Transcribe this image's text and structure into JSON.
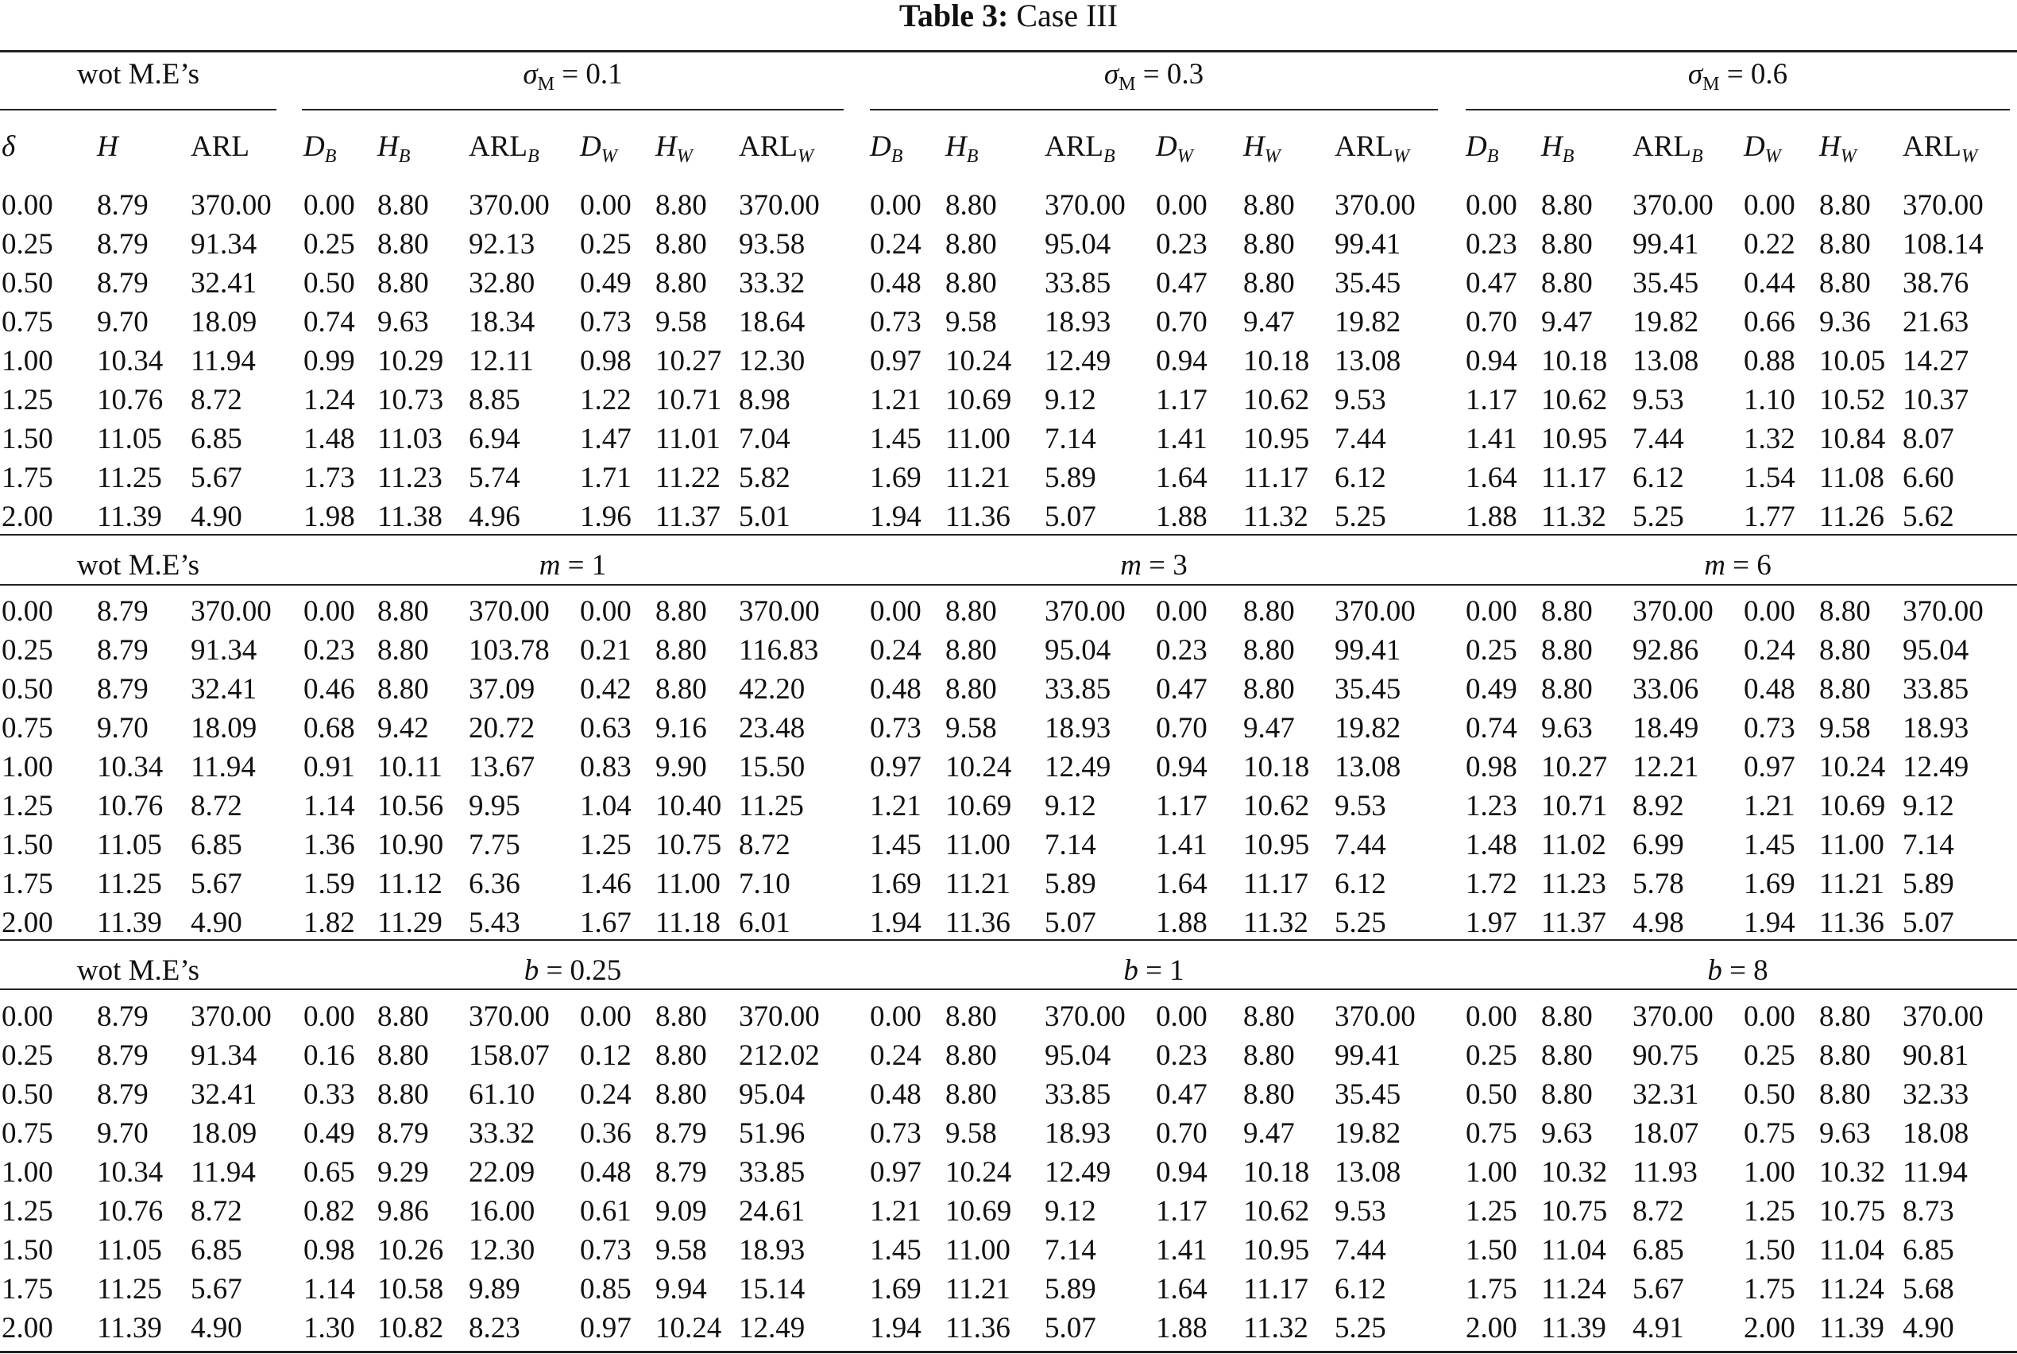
{
  "table": {
    "label": "Table 3:",
    "caption": "Case III",
    "baseline_label": "wot M.E’s",
    "header_row": [
      {
        "text": "δ",
        "style": "it"
      },
      {
        "text": "H",
        "style": "it"
      },
      {
        "text": "ARL",
        "style": "rm"
      },
      {
        "text": "D",
        "sub": "B",
        "style": "it"
      },
      {
        "text": "H",
        "sub": "B",
        "style": "it"
      },
      {
        "text": "ARL",
        "sub": "B",
        "style": "rm"
      },
      {
        "text": "D",
        "sub": "W",
        "style": "it"
      },
      {
        "text": "H",
        "sub": "W",
        "style": "it"
      },
      {
        "text": "ARL",
        "sub": "W",
        "style": "rm"
      },
      {
        "text": "D",
        "sub": "B",
        "style": "it"
      },
      {
        "text": "H",
        "sub": "B",
        "style": "it"
      },
      {
        "text": "ARL",
        "sub": "B",
        "style": "rm"
      },
      {
        "text": "D",
        "sub": "W",
        "style": "it"
      },
      {
        "text": "H",
        "sub": "W",
        "style": "it"
      },
      {
        "text": "ARL",
        "sub": "W",
        "style": "rm"
      },
      {
        "text": "D",
        "sub": "B",
        "style": "it"
      },
      {
        "text": "H",
        "sub": "B",
        "style": "it"
      },
      {
        "text": "ARL",
        "sub": "B",
        "style": "rm"
      },
      {
        "text": "D",
        "sub": "W",
        "style": "it"
      },
      {
        "text": "H",
        "sub": "W",
        "style": "it"
      },
      {
        "text": "ARL",
        "sub": "W",
        "style": "rm"
      }
    ],
    "panels": [
      {
        "groups": [
          {
            "sym": "σ",
            "sub": "M",
            "eq": " = 0.1"
          },
          {
            "sym": "σ",
            "sub": "M",
            "eq": " = 0.3"
          },
          {
            "sym": "σ",
            "sub": "M",
            "eq": " = 0.6"
          }
        ],
        "rows": [
          [
            "0.00",
            "8.79",
            "370.00",
            "0.00",
            "8.80",
            "370.00",
            "0.00",
            "8.80",
            "370.00",
            "0.00",
            "8.80",
            "370.00",
            "0.00",
            "8.80",
            "370.00",
            "0.00",
            "8.80",
            "370.00",
            "0.00",
            "8.80",
            "370.00"
          ],
          [
            "0.25",
            "8.79",
            "91.34",
            "0.25",
            "8.80",
            "92.13",
            "0.25",
            "8.80",
            "93.58",
            "0.24",
            "8.80",
            "95.04",
            "0.23",
            "8.80",
            "99.41",
            "0.23",
            "8.80",
            "99.41",
            "0.22",
            "8.80",
            "108.14"
          ],
          [
            "0.50",
            "8.79",
            "32.41",
            "0.50",
            "8.80",
            "32.80",
            "0.49",
            "8.80",
            "33.32",
            "0.48",
            "8.80",
            "33.85",
            "0.47",
            "8.80",
            "35.45",
            "0.47",
            "8.80",
            "35.45",
            "0.44",
            "8.80",
            "38.76"
          ],
          [
            "0.75",
            "9.70",
            "18.09",
            "0.74",
            "9.63",
            "18.34",
            "0.73",
            "9.58",
            "18.64",
            "0.73",
            "9.58",
            "18.93",
            "0.70",
            "9.47",
            "19.82",
            "0.70",
            "9.47",
            "19.82",
            "0.66",
            "9.36",
            "21.63"
          ],
          [
            "1.00",
            "10.34",
            "11.94",
            "0.99",
            "10.29",
            "12.11",
            "0.98",
            "10.27",
            "12.30",
            "0.97",
            "10.24",
            "12.49",
            "0.94",
            "10.18",
            "13.08",
            "0.94",
            "10.18",
            "13.08",
            "0.88",
            "10.05",
            "14.27"
          ],
          [
            "1.25",
            "10.76",
            "8.72",
            "1.24",
            "10.73",
            "8.85",
            "1.22",
            "10.71",
            "8.98",
            "1.21",
            "10.69",
            "9.12",
            "1.17",
            "10.62",
            "9.53",
            "1.17",
            "10.62",
            "9.53",
            "1.10",
            "10.52",
            "10.37"
          ],
          [
            "1.50",
            "11.05",
            "6.85",
            "1.48",
            "11.03",
            "6.94",
            "1.47",
            "11.01",
            "7.04",
            "1.45",
            "11.00",
            "7.14",
            "1.41",
            "10.95",
            "7.44",
            "1.41",
            "10.95",
            "7.44",
            "1.32",
            "10.84",
            "8.07"
          ],
          [
            "1.75",
            "11.25",
            "5.67",
            "1.73",
            "11.23",
            "5.74",
            "1.71",
            "11.22",
            "5.82",
            "1.69",
            "11.21",
            "5.89",
            "1.64",
            "11.17",
            "6.12",
            "1.64",
            "11.17",
            "6.12",
            "1.54",
            "11.08",
            "6.60"
          ],
          [
            "2.00",
            "11.39",
            "4.90",
            "1.98",
            "11.38",
            "4.96",
            "1.96",
            "11.37",
            "5.01",
            "1.94",
            "11.36",
            "5.07",
            "1.88",
            "11.32",
            "5.25",
            "1.88",
            "11.32",
            "5.25",
            "1.77",
            "11.26",
            "5.62"
          ]
        ]
      },
      {
        "groups": [
          {
            "sym": "m",
            "eq": " = 1"
          },
          {
            "sym": "m",
            "eq": " = 3"
          },
          {
            "sym": "m",
            "eq": " = 6"
          }
        ],
        "rows": [
          [
            "0.00",
            "8.79",
            "370.00",
            "0.00",
            "8.80",
            "370.00",
            "0.00",
            "8.80",
            "370.00",
            "0.00",
            "8.80",
            "370.00",
            "0.00",
            "8.80",
            "370.00",
            "0.00",
            "8.80",
            "370.00",
            "0.00",
            "8.80",
            "370.00"
          ],
          [
            "0.25",
            "8.79",
            "91.34",
            "0.23",
            "8.80",
            "103.78",
            "0.21",
            "8.80",
            "116.83",
            "0.24",
            "8.80",
            "95.04",
            "0.23",
            "8.80",
            "99.41",
            "0.25",
            "8.80",
            "92.86",
            "0.24",
            "8.80",
            "95.04"
          ],
          [
            "0.50",
            "8.79",
            "32.41",
            "0.46",
            "8.80",
            "37.09",
            "0.42",
            "8.80",
            "42.20",
            "0.48",
            "8.80",
            "33.85",
            "0.47",
            "8.80",
            "35.45",
            "0.49",
            "8.80",
            "33.06",
            "0.48",
            "8.80",
            "33.85"
          ],
          [
            "0.75",
            "9.70",
            "18.09",
            "0.68",
            "9.42",
            "20.72",
            "0.63",
            "9.16",
            "23.48",
            "0.73",
            "9.58",
            "18.93",
            "0.70",
            "9.47",
            "19.82",
            "0.74",
            "9.63",
            "18.49",
            "0.73",
            "9.58",
            "18.93"
          ],
          [
            "1.00",
            "10.34",
            "11.94",
            "0.91",
            "10.11",
            "13.67",
            "0.83",
            "9.90",
            "15.50",
            "0.97",
            "10.24",
            "12.49",
            "0.94",
            "10.18",
            "13.08",
            "0.98",
            "10.27",
            "12.21",
            "0.97",
            "10.24",
            "12.49"
          ],
          [
            "1.25",
            "10.76",
            "8.72",
            "1.14",
            "10.56",
            "9.95",
            "1.04",
            "10.40",
            "11.25",
            "1.21",
            "10.69",
            "9.12",
            "1.17",
            "10.62",
            "9.53",
            "1.23",
            "10.71",
            "8.92",
            "1.21",
            "10.69",
            "9.12"
          ],
          [
            "1.50",
            "11.05",
            "6.85",
            "1.36",
            "10.90",
            "7.75",
            "1.25",
            "10.75",
            "8.72",
            "1.45",
            "11.00",
            "7.14",
            "1.41",
            "10.95",
            "7.44",
            "1.48",
            "11.02",
            "6.99",
            "1.45",
            "11.00",
            "7.14"
          ],
          [
            "1.75",
            "11.25",
            "5.67",
            "1.59",
            "11.12",
            "6.36",
            "1.46",
            "11.00",
            "7.10",
            "1.69",
            "11.21",
            "5.89",
            "1.64",
            "11.17",
            "6.12",
            "1.72",
            "11.23",
            "5.78",
            "1.69",
            "11.21",
            "5.89"
          ],
          [
            "2.00",
            "11.39",
            "4.90",
            "1.82",
            "11.29",
            "5.43",
            "1.67",
            "11.18",
            "6.01",
            "1.94",
            "11.36",
            "5.07",
            "1.88",
            "11.32",
            "5.25",
            "1.97",
            "11.37",
            "4.98",
            "1.94",
            "11.36",
            "5.07"
          ]
        ]
      },
      {
        "groups": [
          {
            "sym": "b",
            "eq": " = 0.25"
          },
          {
            "sym": "b",
            "eq": " = 1"
          },
          {
            "sym": "b",
            "eq": " = 8"
          }
        ],
        "rows": [
          [
            "0.00",
            "8.79",
            "370.00",
            "0.00",
            "8.80",
            "370.00",
            "0.00",
            "8.80",
            "370.00",
            "0.00",
            "8.80",
            "370.00",
            "0.00",
            "8.80",
            "370.00",
            "0.00",
            "8.80",
            "370.00",
            "0.00",
            "8.80",
            "370.00"
          ],
          [
            "0.25",
            "8.79",
            "91.34",
            "0.16",
            "8.80",
            "158.07",
            "0.12",
            "8.80",
            "212.02",
            "0.24",
            "8.80",
            "95.04",
            "0.23",
            "8.80",
            "99.41",
            "0.25",
            "8.80",
            "90.75",
            "0.25",
            "8.80",
            "90.81"
          ],
          [
            "0.50",
            "8.79",
            "32.41",
            "0.33",
            "8.80",
            "61.10",
            "0.24",
            "8.80",
            "95.04",
            "0.48",
            "8.80",
            "33.85",
            "0.47",
            "8.80",
            "35.45",
            "0.50",
            "8.80",
            "32.31",
            "0.50",
            "8.80",
            "32.33"
          ],
          [
            "0.75",
            "9.70",
            "18.09",
            "0.49",
            "8.79",
            "33.32",
            "0.36",
            "8.79",
            "51.96",
            "0.73",
            "9.58",
            "18.93",
            "0.70",
            "9.47",
            "19.82",
            "0.75",
            "9.63",
            "18.07",
            "0.75",
            "9.63",
            "18.08"
          ],
          [
            "1.00",
            "10.34",
            "11.94",
            "0.65",
            "9.29",
            "22.09",
            "0.48",
            "8.79",
            "33.85",
            "0.97",
            "10.24",
            "12.49",
            "0.94",
            "10.18",
            "13.08",
            "1.00",
            "10.32",
            "11.93",
            "1.00",
            "10.32",
            "11.94"
          ],
          [
            "1.25",
            "10.76",
            "8.72",
            "0.82",
            "9.86",
            "16.00",
            "0.61",
            "9.09",
            "24.61",
            "1.21",
            "10.69",
            "9.12",
            "1.17",
            "10.62",
            "9.53",
            "1.25",
            "10.75",
            "8.72",
            "1.25",
            "10.75",
            "8.73"
          ],
          [
            "1.50",
            "11.05",
            "6.85",
            "0.98",
            "10.26",
            "12.30",
            "0.73",
            "9.58",
            "18.93",
            "1.45",
            "11.00",
            "7.14",
            "1.41",
            "10.95",
            "7.44",
            "1.50",
            "11.04",
            "6.85",
            "1.50",
            "11.04",
            "6.85"
          ],
          [
            "1.75",
            "11.25",
            "5.67",
            "1.14",
            "10.58",
            "9.89",
            "0.85",
            "9.94",
            "15.14",
            "1.69",
            "11.21",
            "5.89",
            "1.64",
            "11.17",
            "6.12",
            "1.75",
            "11.24",
            "5.67",
            "1.75",
            "11.24",
            "5.68"
          ],
          [
            "2.00",
            "11.39",
            "4.90",
            "1.30",
            "10.82",
            "8.23",
            "0.97",
            "10.24",
            "12.49",
            "1.94",
            "11.36",
            "5.07",
            "1.88",
            "11.32",
            "5.25",
            "2.00",
            "11.39",
            "4.91",
            "2.00",
            "11.39",
            "4.90"
          ]
        ]
      }
    ]
  }
}
